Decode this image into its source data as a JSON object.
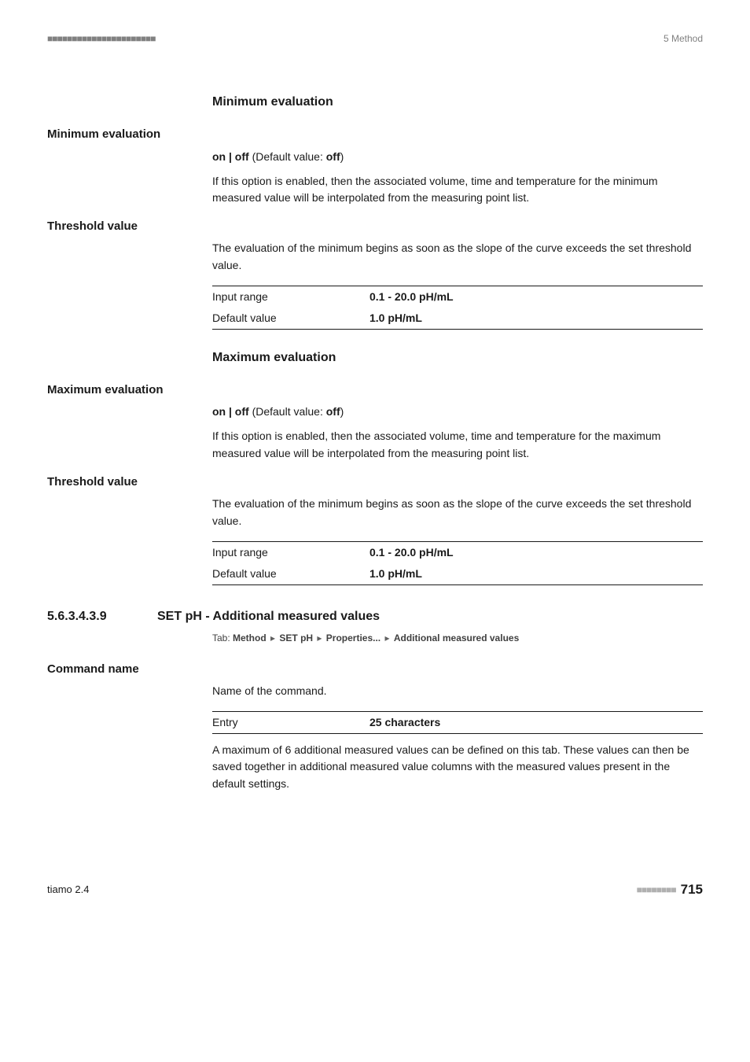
{
  "header": {
    "left_dashes": "■■■■■■■■■■■■■■■■■■■■■■",
    "chapter": "5 Method"
  },
  "minimum": {
    "heading": "Minimum evaluation",
    "param1_label": "Minimum evaluation",
    "default_line_prefix": "on | off",
    "default_line_mid": " (Default value: ",
    "default_line_value": "off",
    "default_line_suffix": ")",
    "desc": "If this option is enabled, then the associated volume, time and temperature for the minimum measured value will be interpolated from the measuring point list.",
    "param2_label": "Threshold value",
    "desc2": "The evaluation of the minimum begins as soon as the slope of the curve exceeds the set threshold value.",
    "range_label": "Input range",
    "range_value": "0.1 - 20.0 pH/mL",
    "default_label": "Default value",
    "default_value": "1.0 pH/mL"
  },
  "maximum": {
    "heading": "Maximum evaluation",
    "param1_label": "Maximum evaluation",
    "default_line_prefix": "on | off",
    "default_line_mid": " (Default value: ",
    "default_line_value": "off",
    "default_line_suffix": ")",
    "desc": "If this option is enabled, then the associated volume, time and temperature for the maximum measured value will be interpolated from the measuring point list.",
    "param2_label": "Threshold value",
    "desc2": "The evaluation of the minimum begins as soon as the slope of the curve exceeds the set threshold value.",
    "range_label": "Input range",
    "range_value": "0.1 - 20.0 pH/mL",
    "default_label": "Default value",
    "default_value": "1.0 pH/mL"
  },
  "section": {
    "number": "5.6.3.4.3.9",
    "title": "SET pH - Additional measured values",
    "tab_prefix": "Tab: ",
    "tab_p1": "Method",
    "tab_p2": "SET pH",
    "tab_p3": "Properties...",
    "tab_p4": "Additional measured values",
    "sep": "▸"
  },
  "command": {
    "label": "Command name",
    "desc": "Name of the command.",
    "entry_label": "Entry",
    "entry_value": "25 characters",
    "desc2": "A maximum of 6 additional measured values can be defined on this tab. These values can then be saved together in additional measured value columns with the measured values present in the default settings."
  },
  "footer": {
    "product": "tiamo 2.4",
    "dashes": "■■■■■■■■",
    "page": "715"
  }
}
